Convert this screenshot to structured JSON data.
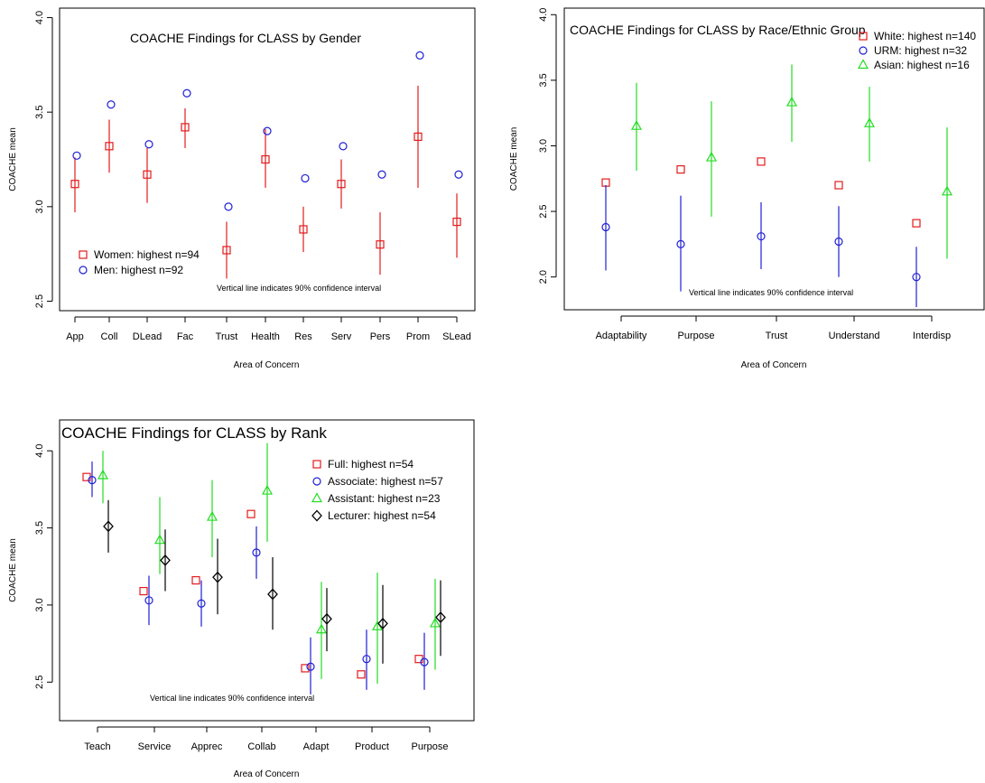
{
  "chart_data": [
    {
      "type": "scatter",
      "title": "COACHE Findings for CLASS by Gender",
      "xlabel": "Area of Concern",
      "ylabel": "COACHE mean",
      "note": "Vertical line indicates 90% confidence interval",
      "ylim": [
        2.45,
        4.05
      ],
      "yticks": [
        "2.5",
        "3.0",
        "3.5",
        "4.0"
      ],
      "categories": [
        "App",
        "Coll",
        "DLead",
        "Fac",
        "Trust",
        "Health",
        "Res",
        "Serv",
        "Pers",
        "Prom",
        "SLead"
      ],
      "legend_position": "left-lower",
      "series": [
        {
          "name": "Women: highest n=94",
          "color": "#e41a1c",
          "marker": "square",
          "values": [
            3.12,
            3.32,
            3.17,
            3.42,
            2.77,
            3.25,
            2.88,
            3.12,
            2.8,
            3.37,
            2.92
          ],
          "low": [
            2.97,
            3.18,
            3.02,
            3.31,
            2.62,
            3.1,
            2.76,
            2.99,
            2.64,
            3.1,
            2.73
          ],
          "high": [
            3.26,
            3.46,
            3.31,
            3.52,
            2.92,
            3.41,
            3.0,
            3.25,
            2.97,
            3.64,
            3.07
          ]
        },
        {
          "name": "Men: highest n=92",
          "color": "#1f1fd6",
          "marker": "circle",
          "values": [
            3.27,
            3.54,
            3.33,
            3.6,
            3.0,
            3.4,
            3.15,
            3.32,
            3.17,
            3.8,
            3.17
          ],
          "low": null,
          "high": null
        }
      ]
    },
    {
      "type": "scatter",
      "title": "COACHE Findings for CLASS by Race/Ethnic Group",
      "xlabel": "Area of Concern",
      "ylabel": "COACHE mean",
      "note": "Vertical line indicates 90% confidence interval",
      "ylim": [
        1.75,
        4.05
      ],
      "yticks": [
        "2.0",
        "2.5",
        "3.0",
        "3.5",
        "4.0"
      ],
      "categories": [
        "Adaptability",
        "Purpose",
        "Trust",
        "Understand",
        "Interdisp"
      ],
      "legend_position": "top-right",
      "series": [
        {
          "name": "White: highest n=140",
          "color": "#e41a1c",
          "marker": "square",
          "values": [
            2.72,
            2.82,
            2.88,
            2.7,
            2.41
          ],
          "low": null,
          "high": null
        },
        {
          "name": "URM: highest n=32",
          "color": "#1f1fd6",
          "marker": "circle",
          "values": [
            2.38,
            2.25,
            2.31,
            2.27,
            2.0
          ],
          "low": [
            2.05,
            1.89,
            2.06,
            2.0,
            1.77
          ],
          "high": [
            2.7,
            2.62,
            2.57,
            2.54,
            2.23
          ]
        },
        {
          "name": "Asian: highest n=16",
          "color": "#22dd22",
          "marker": "triangle",
          "values": [
            3.15,
            2.91,
            3.33,
            3.17,
            2.65
          ],
          "low": [
            2.81,
            2.46,
            3.03,
            2.88,
            2.14
          ],
          "high": [
            3.48,
            3.34,
            3.62,
            3.45,
            3.14
          ]
        }
      ]
    },
    {
      "type": "scatter",
      "title": "COACHE Findings for CLASS by Rank",
      "xlabel": "Area of Concern",
      "ylabel": "COACHE mean",
      "note": "Vertical line indicates 90% confidence interval",
      "ylim": [
        2.25,
        4.2
      ],
      "yticks": [
        "2.5",
        "3.0",
        "3.5",
        "4.0"
      ],
      "categories": [
        "Teach",
        "Service",
        "Apprec",
        "Collab",
        "Adapt",
        "Product",
        "Purpose"
      ],
      "legend_position": "top-right",
      "series": [
        {
          "name": "Full: highest n=54",
          "color": "#e41a1c",
          "marker": "square",
          "values": [
            3.83,
            3.09,
            3.16,
            3.59,
            2.59,
            2.55,
            2.65
          ],
          "low": null,
          "high": null
        },
        {
          "name": "Associate: highest n=57",
          "color": "#1f1fd6",
          "marker": "circle",
          "values": [
            3.81,
            3.03,
            3.01,
            3.34,
            2.6,
            2.65,
            2.63
          ],
          "low": [
            3.7,
            2.87,
            2.86,
            3.17,
            2.42,
            2.45,
            2.45
          ],
          "high": [
            3.93,
            3.19,
            3.16,
            3.51,
            2.79,
            2.84,
            2.82
          ]
        },
        {
          "name": "Assistant: highest n=23",
          "color": "#22dd22",
          "marker": "triangle",
          "values": [
            3.84,
            3.42,
            3.57,
            3.74,
            2.84,
            2.86,
            2.88
          ],
          "low": [
            3.66,
            3.2,
            3.31,
            3.41,
            2.52,
            2.49,
            2.58
          ],
          "high": [
            4.0,
            3.7,
            3.81,
            4.05,
            3.15,
            3.21,
            3.17
          ]
        },
        {
          "name": "Lecturer: highest n=54",
          "color": "#000000",
          "marker": "diamond",
          "values": [
            3.51,
            3.29,
            3.18,
            3.07,
            2.91,
            2.88,
            2.92
          ],
          "low": [
            3.34,
            3.09,
            2.94,
            2.84,
            2.7,
            2.62,
            2.67
          ],
          "high": [
            3.68,
            3.49,
            3.43,
            3.31,
            3.11,
            3.13,
            3.16
          ]
        }
      ]
    }
  ]
}
